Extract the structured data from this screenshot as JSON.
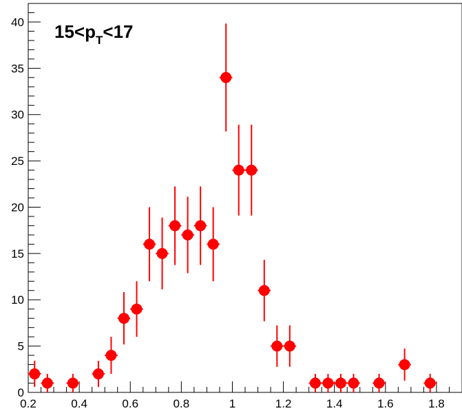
{
  "chart_data": {
    "type": "scatter",
    "title": "",
    "xlabel": "",
    "ylabel": "",
    "xlim": [
      0.2,
      1.9
    ],
    "ylim": [
      0,
      42
    ],
    "grid": false,
    "legend": "none",
    "annotation": {
      "main": "15<p",
      "sub": "T",
      "tail": "<17"
    },
    "marker_color": "#ff0000",
    "x_ticks": [
      0.2,
      0.4,
      0.6,
      0.8,
      1.0,
      1.2,
      1.4,
      1.6,
      1.8
    ],
    "x_tick_labels": [
      "0.2",
      "0.4",
      "0.6",
      "0.8",
      "1",
      "1.2",
      "1.4",
      "1.6",
      "1.8"
    ],
    "y_ticks": [
      0,
      5,
      10,
      15,
      20,
      25,
      30,
      35,
      40
    ],
    "y_tick_labels": [
      "0",
      "5",
      "10",
      "15",
      "20",
      "25",
      "30",
      "35",
      "40"
    ],
    "bin_half_width": 0.025,
    "points": [
      {
        "x": 0.225,
        "y": 2
      },
      {
        "x": 0.275,
        "y": 1
      },
      {
        "x": 0.375,
        "y": 1
      },
      {
        "x": 0.475,
        "y": 2
      },
      {
        "x": 0.525,
        "y": 4
      },
      {
        "x": 0.575,
        "y": 8
      },
      {
        "x": 0.625,
        "y": 9
      },
      {
        "x": 0.675,
        "y": 16
      },
      {
        "x": 0.725,
        "y": 15
      },
      {
        "x": 0.775,
        "y": 18
      },
      {
        "x": 0.825,
        "y": 17
      },
      {
        "x": 0.875,
        "y": 18
      },
      {
        "x": 0.925,
        "y": 16
      },
      {
        "x": 0.975,
        "y": 34
      },
      {
        "x": 1.025,
        "y": 24
      },
      {
        "x": 1.075,
        "y": 24
      },
      {
        "x": 1.125,
        "y": 11
      },
      {
        "x": 1.175,
        "y": 5
      },
      {
        "x": 1.225,
        "y": 5
      },
      {
        "x": 1.325,
        "y": 1
      },
      {
        "x": 1.375,
        "y": 1
      },
      {
        "x": 1.425,
        "y": 1
      },
      {
        "x": 1.475,
        "y": 1
      },
      {
        "x": 1.575,
        "y": 1
      },
      {
        "x": 1.675,
        "y": 3
      },
      {
        "x": 1.775,
        "y": 1
      }
    ]
  }
}
